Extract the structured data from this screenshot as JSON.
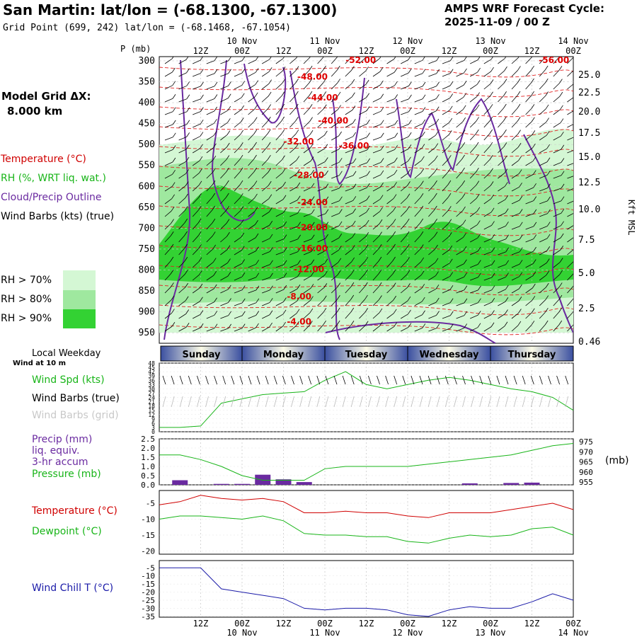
{
  "header": {
    "title": "San Martin:  lat/lon = (-68.1300, -67.1300)",
    "subtitle": "Grid Point (699, 242) lat/lon = (-68.1468, -67.1054)",
    "cycle_title": "AMPS WRF Forecast Cycle:",
    "cycle_value": "2025-11-09 / 00  Z",
    "grid_label": "Model Grid ΔX:",
    "grid_value": "8.000 km"
  },
  "legend": {
    "temperature": "Temperature (°C)",
    "rh": "RH (%, WRT liq. wat.)",
    "cloud": "Cloud/Precip Outline",
    "wind": "Wind Barbs (kts) (true)",
    "rh70": "RH > 70%",
    "rh80": "RH > 80%",
    "rh90": "RH > 90%",
    "rh_colors": [
      "#d4f7d4",
      "#9fe89f",
      "#33d233"
    ]
  },
  "axes": {
    "p_label": "P (mb)",
    "right_label": "Kft MSL",
    "pressure_ticks": [
      "300",
      "350",
      "400",
      "450",
      "500",
      "550",
      "600",
      "650",
      "700",
      "750",
      "800",
      "850",
      "900",
      "950"
    ],
    "kft_ticks": [
      "25.0",
      "22.5",
      "20.0",
      "17.5",
      "15.0",
      "12.5",
      "10.0",
      "7.5",
      "5.0",
      "2.5",
      "0.46"
    ],
    "top_hours": [
      "12Z",
      "00Z",
      "12Z",
      "00Z",
      "12Z",
      "00Z",
      "12Z",
      "00Z",
      "12Z",
      "00Z"
    ],
    "dates": [
      "10 Nov",
      "11 Nov",
      "12 Nov",
      "13 Nov",
      "14 Nov"
    ]
  },
  "weekday": {
    "label": "Local Weekday",
    "days": [
      "Sunday",
      "Monday",
      "Tuesday",
      "Wednesday",
      "Thursday"
    ]
  },
  "panels": {
    "wind": {
      "note": "Wind at 10 m",
      "spd": "Wind Spd (kts)",
      "barbs_true": "Wind Barbs (true)",
      "barbs_grid": "Wind Barbs (grid)",
      "ticks": [
        "48",
        "45",
        "42",
        "39",
        "36",
        "33",
        "30",
        "27",
        "24",
        "21",
        "18",
        "15",
        "12",
        "9",
        "6",
        "3",
        "0"
      ]
    },
    "precip": {
      "label1": "Precip (mm)",
      "label2": "liq. equiv.",
      "label3": "3-hr accum",
      "label4": "Pressure (mb)",
      "unit": "(mb)",
      "left_ticks": [
        "2.5",
        "2.0",
        "1.5",
        "1.0",
        "0.5",
        "0.0"
      ],
      "right_ticks": [
        "975",
        "970",
        "965",
        "960",
        "955"
      ]
    },
    "temp": {
      "label1": "Temperature (°C)",
      "label2": "Dewpoint (°C)",
      "ticks": [
        "-5",
        "-10",
        "-15",
        "-20"
      ]
    },
    "chill": {
      "label": "Wind Chill T (°C)",
      "ticks": [
        "-5",
        "-10",
        "-15",
        "-20",
        "-25",
        "-30",
        "-35"
      ]
    }
  },
  "chart_data": {
    "type": "line",
    "x_hours": [
      0,
      6,
      12,
      18,
      24,
      30,
      36,
      42,
      48,
      54,
      60,
      66,
      72,
      78,
      84,
      90,
      96,
      102,
      108,
      114,
      120
    ],
    "isotherm_labels": [
      {
        "value": "-52.00",
        "hour": 54,
        "p": 305
      },
      {
        "value": "-56.00",
        "hour": 110,
        "p": 305
      },
      {
        "value": "-48.00",
        "hour": 40,
        "p": 345
      },
      {
        "value": "-44.00",
        "hour": 43,
        "p": 395
      },
      {
        "value": "-40.00",
        "hour": 46,
        "p": 450
      },
      {
        "value": "-36.00",
        "hour": 52,
        "p": 510
      },
      {
        "value": "-32.00",
        "hour": 36,
        "p": 500
      },
      {
        "value": "-28.00",
        "hour": 39,
        "p": 580
      },
      {
        "value": "-24.00",
        "hour": 40,
        "p": 645
      },
      {
        "value": "-20.00",
        "hour": 40,
        "p": 705
      },
      {
        "value": "-16.00",
        "hour": 40,
        "p": 755
      },
      {
        "value": "-12.00",
        "hour": 39,
        "p": 805
      },
      {
        "value": "-8.00",
        "hour": 37,
        "p": 870
      },
      {
        "value": "-4.00",
        "hour": 37,
        "p": 930
      }
    ],
    "wind_speed_kts": [
      3,
      3,
      4,
      20,
      23,
      26,
      27,
      28,
      36,
      42,
      33,
      30,
      33,
      36,
      38,
      36,
      33,
      30,
      28,
      24,
      15
    ],
    "pressure_mb": [
      968,
      968,
      966,
      963,
      959,
      957,
      957,
      957,
      962,
      963,
      963,
      963,
      963,
      964,
      965,
      966,
      967,
      968,
      970,
      972,
      973
    ],
    "precip_mm": [
      0,
      0.25,
      0,
      0.05,
      0.05,
      0.55,
      0.3,
      0.15,
      0,
      0,
      0,
      0,
      0,
      0,
      0,
      0.08,
      0,
      0.1,
      0.12,
      0,
      0
    ],
    "temperature_c": [
      -5.5,
      -4.5,
      -2.5,
      -3.5,
      -4,
      -3.5,
      -4.5,
      -8,
      -8,
      -7.5,
      -8,
      -8,
      -9,
      -9.5,
      -8,
      -8,
      -8,
      -7,
      -6,
      -5,
      -7
    ],
    "dewpoint_c": [
      -10,
      -9,
      -9,
      -9.5,
      -10,
      -9,
      -10.5,
      -14.5,
      -15,
      -15,
      -15.5,
      -15.5,
      -17,
      -17.5,
      -16,
      -15,
      -15.5,
      -15,
      -13,
      -12.5,
      -15
    ],
    "wind_chill_c": [
      -5,
      -5,
      -5,
      -18,
      -20,
      -22,
      -24,
      -30,
      -31,
      -30,
      -30,
      -31,
      -34,
      -35,
      -31,
      -29,
      -30,
      -30,
      -26,
      -21,
      -25
    ]
  }
}
